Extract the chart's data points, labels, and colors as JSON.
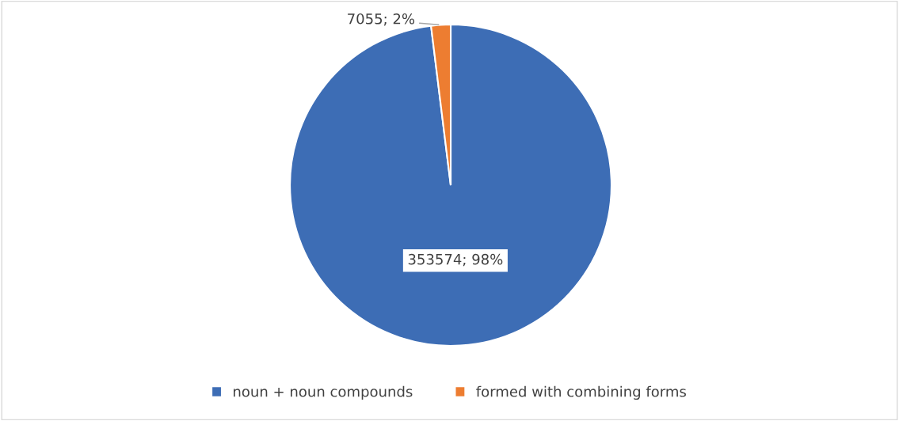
{
  "chart_data": {
    "type": "pie",
    "categories": [
      "noun + noun compounds",
      "formed with combining forms"
    ],
    "values": [
      353574,
      7055
    ],
    "colors": [
      "#3d6db5",
      "#ed7d31"
    ],
    "value_labels": [
      "353574; 98%",
      "7055; 2%"
    ],
    "legend": "bottom"
  }
}
